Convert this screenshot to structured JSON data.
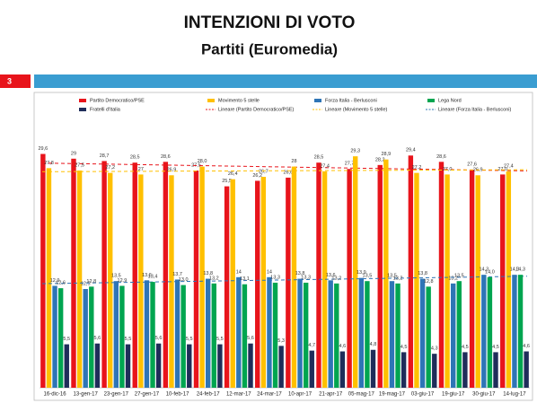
{
  "header": {
    "title": "INTENZIONI DI VOTO",
    "subtitle": "Partiti (Euromedia)",
    "slide_number": "3"
  },
  "chart_data": {
    "type": "bar",
    "categories": [
      "16-dic-16",
      "13-gen-17",
      "23-gen-17",
      "27-gen-17",
      "10-feb-17",
      "24-feb-17",
      "12-mar-17",
      "24-mar-17",
      "10-apr-17",
      "21-apr-17",
      "05-mag-17",
      "19-mag-17",
      "03-giu-17",
      "19-giu-17",
      "30-giu-17",
      "14-lug-17"
    ],
    "series": [
      {
        "name": "Partito Democratico/PSE",
        "color": "#e8141b",
        "values": [
          29.6,
          29,
          28.7,
          28.5,
          28.6,
          27.5,
          25.5,
          26.2,
          26.6,
          28.5,
          27.7,
          28.2,
          29.4,
          28.6,
          27.6,
          27.0
        ],
        "value_labels": [
          "29,6",
          "29",
          "28,7",
          "28,5",
          "28,6",
          "27,5",
          "25,5",
          "26,2",
          "26,6",
          "28,5",
          "27,7",
          "28,2",
          "29,4",
          "28,6",
          "27,6",
          "27,0"
        ],
        "trendline": {
          "name": "Lineare (Partito Democratico/PSE)",
          "color": "#e8141b"
        }
      },
      {
        "name": "Movimento 5 stelle",
        "color": "#ffc000",
        "values": [
          27.8,
          27.5,
          27.2,
          27,
          26.9,
          28.0,
          26.4,
          26.7,
          28,
          27.4,
          29.3,
          28.9,
          27.2,
          27.0,
          26.9,
          27.4
        ],
        "value_labels": [
          "27,8",
          "27,5",
          "27,2",
          "27",
          "26,9",
          "28,0",
          "26,4",
          "26,7",
          "28",
          "27,4",
          "29,3",
          "28,9",
          "27,2",
          "27,0",
          "26,9",
          "27,4"
        ],
        "trendline": {
          "name": "Lineare (Movimento 5 stelle)",
          "color": "#ffc000"
        }
      },
      {
        "name": "Forza Italia - Berlusconi",
        "color": "#2e75b6",
        "values": [
          12.9,
          12.5,
          13.5,
          13.6,
          13.7,
          13.8,
          14,
          14,
          13.8,
          13.6,
          13.9,
          13.5,
          13.8,
          13.2,
          14.3,
          14.3
        ],
        "value_labels": [
          "12,9",
          "12,5",
          "13,5",
          "13,6",
          "13,7",
          "13,8",
          "14",
          "14",
          "13,8",
          "13,6",
          "13,9",
          "13,5",
          "13,8",
          "13,2",
          "14,3",
          "14,3"
        ],
        "trendline": {
          "name": "Lineare (Forza Italia - Berlusconi)",
          "color": "#2e75b6"
        }
      },
      {
        "name": "Lega Nord",
        "color": "#00a550",
        "values": [
          12.6,
          12.8,
          12.9,
          13.4,
          13.0,
          13.2,
          13.1,
          13.3,
          13.3,
          13.2,
          13.5,
          13.2,
          12.8,
          13.5,
          14.0,
          14.3
        ],
        "value_labels": [
          "12,6",
          "12,8",
          "12,9",
          "13,4",
          "13,0",
          "13,2",
          "13,1",
          "13,3",
          "13,3",
          "13,2",
          "13,5",
          "13,2",
          "12,8",
          "13,5",
          "14,0",
          "14,3"
        ]
      },
      {
        "name": "Fratelli d'Italia",
        "color": "#1f2d5a",
        "values": [
          5.5,
          5.6,
          5.5,
          5.6,
          5.5,
          5.5,
          5.6,
          5.3,
          4.7,
          4.6,
          4.8,
          4.5,
          4.3,
          4.5,
          4.5,
          4.6
        ],
        "value_labels": [
          "5,5",
          "5,6",
          "5,5",
          "5,6",
          "5,5",
          "5,5",
          "5,6",
          "5,3",
          "4,7",
          "4,6",
          "4,8",
          "4,5",
          "4,3",
          "4,5",
          "4,5",
          "4,6"
        ]
      }
    ]
  }
}
